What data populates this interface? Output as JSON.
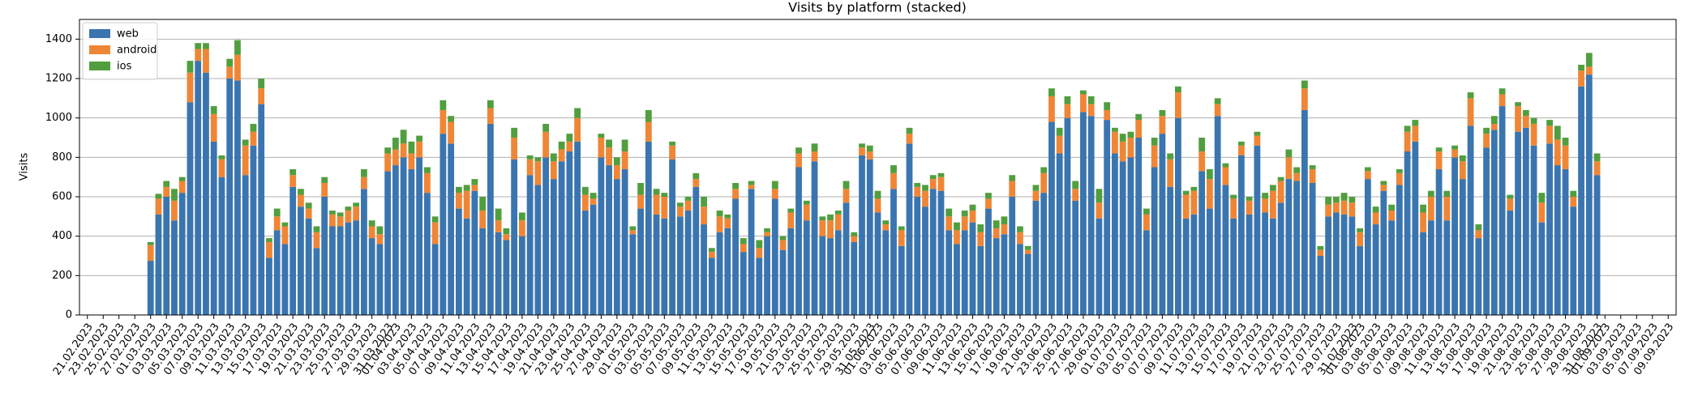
{
  "chart_data": {
    "type": "stacked_bar",
    "title": "Visits by platform (stacked)",
    "y_label": "Visits",
    "x": [
      "01.03.2023",
      "02.03.2023",
      "03.03.2023",
      "04.03.2023",
      "05.03.2023",
      "06.03.2023",
      "07.03.2023",
      "08.03.2023",
      "09.03.2023",
      "10.03.2023",
      "11.03.2023",
      "12.03.2023",
      "13.03.2023",
      "14.03.2023",
      "15.03.2023",
      "16.03.2023",
      "17.03.2023",
      "18.03.2023",
      "19.03.2023",
      "20.03.2023",
      "21.03.2023",
      "22.03.2023",
      "23.03.2023",
      "24.03.2023",
      "25.03.2023",
      "26.03.2023",
      "27.03.2023",
      "28.03.2023",
      "29.03.2023",
      "30.03.2023",
      "31.03.2023",
      "01.04.2023",
      "02.04.2023",
      "03.04.2023",
      "04.04.2023",
      "05.04.2023",
      "06.04.2023",
      "07.04.2023",
      "08.04.2023",
      "09.04.2023",
      "10.04.2023",
      "11.04.2023",
      "12.04.2023",
      "13.04.2023",
      "14.04.2023",
      "15.04.2023",
      "16.04.2023",
      "17.04.2023",
      "18.04.2023",
      "19.04.2023",
      "20.04.2023",
      "21.04.2023",
      "22.04.2023",
      "23.04.2023",
      "24.04.2023",
      "25.04.2023",
      "26.04.2023",
      "27.04.2023",
      "28.04.2023",
      "29.04.2023",
      "30.04.2023",
      "01.05.2023",
      "02.05.2023",
      "03.05.2023",
      "04.05.2023",
      "05.05.2023",
      "06.05.2023",
      "07.05.2023",
      "08.05.2023",
      "09.05.2023",
      "10.05.2023",
      "11.05.2023",
      "12.05.2023",
      "13.05.2023",
      "14.05.2023",
      "15.05.2023",
      "16.05.2023",
      "17.05.2023",
      "18.05.2023",
      "19.05.2023",
      "20.05.2023",
      "21.05.2023",
      "22.05.2023",
      "23.05.2023",
      "24.05.2023",
      "25.05.2023",
      "26.05.2023",
      "27.05.2023",
      "28.05.2023",
      "29.05.2023",
      "30.05.2023",
      "31.05.2023",
      "01.06.2023",
      "02.06.2023",
      "03.06.2023",
      "04.06.2023",
      "05.06.2023",
      "06.06.2023",
      "07.06.2023",
      "08.06.2023",
      "09.06.2023",
      "10.06.2023",
      "11.06.2023",
      "12.06.2023",
      "13.06.2023",
      "14.06.2023",
      "15.06.2023",
      "16.06.2023",
      "17.06.2023",
      "18.06.2023",
      "19.06.2023",
      "20.06.2023",
      "21.06.2023",
      "22.06.2023",
      "23.06.2023",
      "24.06.2023",
      "25.06.2023",
      "26.06.2023",
      "27.06.2023",
      "28.06.2023",
      "29.06.2023",
      "30.06.2023",
      "01.07.2023",
      "02.07.2023",
      "03.07.2023",
      "04.07.2023",
      "05.07.2023",
      "06.07.2023",
      "07.07.2023",
      "08.07.2023",
      "09.07.2023",
      "10.07.2023",
      "11.07.2023",
      "12.07.2023",
      "13.07.2023",
      "14.07.2023",
      "15.07.2023",
      "16.07.2023",
      "17.07.2023",
      "18.07.2023",
      "19.07.2023",
      "20.07.2023",
      "21.07.2023",
      "22.07.2023",
      "23.07.2023",
      "24.07.2023",
      "25.07.2023",
      "26.07.2023",
      "27.07.2023",
      "28.07.2023",
      "29.07.2023",
      "30.07.2023",
      "31.07.2023",
      "01.08.2023",
      "02.08.2023",
      "03.08.2023",
      "04.08.2023",
      "05.08.2023",
      "06.08.2023",
      "07.08.2023",
      "08.08.2023",
      "09.08.2023",
      "10.08.2023",
      "11.08.2023",
      "12.08.2023",
      "13.08.2023",
      "14.08.2023",
      "15.08.2023",
      "16.08.2023",
      "17.08.2023",
      "18.08.2023",
      "19.08.2023",
      "20.08.2023",
      "21.08.2023",
      "22.08.2023",
      "23.08.2023",
      "24.08.2023",
      "25.08.2023",
      "26.08.2023",
      "27.08.2023",
      "28.08.2023",
      "29.08.2023",
      "30.08.2023",
      "31.08.2023"
    ],
    "series": [
      {
        "name": "web",
        "color": "#3a75af",
        "values": [
          275,
          510,
          600,
          480,
          620,
          1080,
          1290,
          1230,
          880,
          700,
          1200,
          1190,
          710,
          860,
          1070,
          290,
          430,
          360,
          650,
          550,
          490,
          340,
          600,
          450,
          450,
          470,
          480,
          640,
          390,
          360,
          730,
          760,
          800,
          740,
          800,
          620,
          360,
          920,
          870,
          540,
          490,
          630,
          440,
          970,
          420,
          380,
          790,
          400,
          710,
          660,
          800,
          690,
          780,
          830,
          880,
          530,
          560,
          800,
          760,
          690,
          740,
          410,
          540,
          880,
          510,
          490,
          790,
          500,
          530,
          650,
          460,
          290,
          420,
          440,
          590,
          320,
          640,
          290,
          400,
          590,
          330,
          440,
          750,
          480,
          780,
          400,
          390,
          430,
          570,
          370,
          810,
          790,
          520,
          430,
          640,
          350,
          870,
          600,
          550,
          640,
          630,
          430,
          360,
          430,
          470,
          350,
          540,
          390,
          410,
          600,
          360,
          310,
          580,
          620,
          980,
          820,
          1000,
          580,
          1030,
          1010,
          490,
          990,
          820,
          780,
          800,
          900,
          430,
          750,
          920,
          650,
          1000,
          490,
          510,
          730,
          540,
          1010,
          660,
          490,
          810,
          510,
          860,
          520,
          490,
          570,
          690,
          680,
          1040,
          670,
          300,
          500,
          520,
          510,
          500,
          350,
          690,
          460,
          630,
          480,
          660,
          830,
          880,
          420,
          480,
          740,
          480,
          800,
          690,
          960,
          390,
          850,
          940,
          1060,
          530,
          930,
          950,
          860,
          470,
          870,
          760,
          740,
          550,
          1160,
          1220,
          710
        ]
      },
      {
        "name": "android",
        "color": "#ef8636",
        "values": [
          80,
          80,
          50,
          100,
          60,
          150,
          60,
          120,
          140,
          90,
          60,
          130,
          150,
          70,
          80,
          80,
          70,
          90,
          60,
          60,
          50,
          80,
          70,
          60,
          50,
          60,
          70,
          60,
          60,
          50,
          90,
          80,
          70,
          80,
          80,
          100,
          110,
          120,
          110,
          80,
          140,
          30,
          90,
          80,
          60,
          30,
          110,
          80,
          80,
          120,
          130,
          90,
          60,
          50,
          120,
          80,
          30,
          100,
          90,
          70,
          90,
          20,
          70,
          100,
          100,
          110,
          70,
          50,
          50,
          40,
          90,
          30,
          80,
          50,
          50,
          40,
          20,
          50,
          20,
          50,
          50,
          80,
          70,
          80,
          50,
          80,
          90,
          80,
          70,
          30,
          40,
          40,
          70,
          30,
          80,
          80,
          50,
          50,
          80,
          50,
          70,
          70,
          70,
          70,
          60,
          70,
          50,
          50,
          50,
          80,
          60,
          20,
          50,
          100,
          130,
          90,
          70,
          60,
          90,
          60,
          80,
          50,
          110,
          100,
          100,
          90,
          80,
          110,
          90,
          140,
          130,
          120,
          120,
          100,
          150,
          60,
          90,
          100,
          50,
          70,
          50,
          70,
          140,
          110,
          110,
          40,
          110,
          70,
          30,
          60,
          50,
          70,
          70,
          70,
          40,
          60,
          30,
          50,
          60,
          100,
          80,
          100,
          120,
          90,
          120,
          40,
          90,
          140,
          40,
          70,
          30,
          60,
          60,
          130,
          60,
          110,
          100,
          90,
          130,
          120,
          50,
          80,
          40,
          70
        ]
      },
      {
        "name": "ios",
        "color": "#519e3e",
        "values": [
          15,
          25,
          30,
          60,
          20,
          60,
          30,
          30,
          40,
          20,
          40,
          75,
          30,
          40,
          50,
          20,
          40,
          20,
          30,
          30,
          30,
          30,
          30,
          20,
          20,
          20,
          20,
          40,
          30,
          40,
          30,
          60,
          70,
          60,
          30,
          30,
          30,
          50,
          30,
          30,
          30,
          30,
          70,
          40,
          60,
          30,
          50,
          40,
          20,
          20,
          40,
          40,
          40,
          40,
          50,
          40,
          30,
          20,
          40,
          40,
          60,
          20,
          60,
          60,
          30,
          20,
          20,
          20,
          20,
          30,
          50,
          20,
          30,
          20,
          30,
          30,
          20,
          40,
          20,
          40,
          20,
          20,
          30,
          20,
          40,
          20,
          30,
          20,
          40,
          20,
          20,
          30,
          40,
          20,
          40,
          20,
          30,
          20,
          30,
          20,
          20,
          40,
          40,
          30,
          30,
          40,
          30,
          40,
          40,
          30,
          30,
          20,
          30,
          30,
          40,
          40,
          40,
          40,
          20,
          40,
          70,
          40,
          20,
          40,
          30,
          30,
          30,
          40,
          30,
          30,
          30,
          20,
          20,
          70,
          50,
          30,
          20,
          20,
          20,
          20,
          20,
          30,
          30,
          20,
          40,
          30,
          40,
          20,
          20,
          40,
          30,
          40,
          30,
          20,
          20,
          30,
          20,
          30,
          20,
          30,
          30,
          40,
          30,
          20,
          30,
          20,
          30,
          30,
          30,
          30,
          40,
          30,
          20,
          20,
          30,
          30,
          50,
          30,
          70,
          40,
          30,
          30,
          70,
          40
        ]
      }
    ],
    "xlim": [
      "20.02.2023",
      "10.09.2023"
    ],
    "xticks": [
      "21.02.2023",
      "23.02.2023",
      "25.02.2023",
      "27.02.2023",
      "01.03.2023",
      "03.03.2023",
      "05.03.2023",
      "07.03.2023",
      "09.03.2023",
      "11.03.2023",
      "13.03.2023",
      "15.03.2023",
      "17.03.2023",
      "19.03.2023",
      "21.03.2023",
      "23.03.2023",
      "25.03.2023",
      "27.03.2023",
      "29.03.2023",
      "31.03.2023",
      "01.04.2023",
      "03.04.2023",
      "05.04.2023",
      "07.04.2023",
      "09.04.2023",
      "11.04.2023",
      "13.04.2023",
      "15.04.2023",
      "17.04.2023",
      "19.04.2023",
      "21.04.2023",
      "23.04.2023",
      "25.04.2023",
      "27.04.2023",
      "29.04.2023",
      "01.05.2023",
      "03.05.2023",
      "05.05.2023",
      "07.05.2023",
      "09.05.2023",
      "11.05.2023",
      "13.05.2023",
      "15.05.2023",
      "17.05.2023",
      "19.05.2023",
      "21.05.2023",
      "23.05.2023",
      "25.05.2023",
      "27.05.2023",
      "29.05.2023",
      "31.05.2023",
      "01.06.2023",
      "03.06.2023",
      "05.06.2023",
      "07.06.2023",
      "09.06.2023",
      "11.06.2023",
      "13.06.2023",
      "15.06.2023",
      "17.06.2023",
      "19.06.2023",
      "21.06.2023",
      "23.06.2023",
      "25.06.2023",
      "27.06.2023",
      "29.06.2023",
      "01.07.2023",
      "03.07.2023",
      "05.07.2023",
      "07.07.2023",
      "09.07.2023",
      "11.07.2023",
      "13.07.2023",
      "15.07.2023",
      "17.07.2023",
      "19.07.2023",
      "21.07.2023",
      "23.07.2023",
      "25.07.2023",
      "27.07.2023",
      "29.07.2023",
      "31.07.2023",
      "01.08.2023",
      "03.08.2023",
      "05.08.2023",
      "07.08.2023",
      "09.08.2023",
      "11.08.2023",
      "13.08.2023",
      "15.08.2023",
      "17.08.2023",
      "19.08.2023",
      "21.08.2023",
      "23.08.2023",
      "25.08.2023",
      "27.08.2023",
      "29.08.2023",
      "31.08.2023",
      "01.09.2023",
      "03.09.2023",
      "05.09.2023",
      "07.09.2023",
      "09.09.2023"
    ],
    "ylim": [
      0,
      1500
    ],
    "yticks": [
      0,
      200,
      400,
      600,
      800,
      1000,
      1200,
      1400
    ],
    "grid": true,
    "legend": "upper left"
  }
}
